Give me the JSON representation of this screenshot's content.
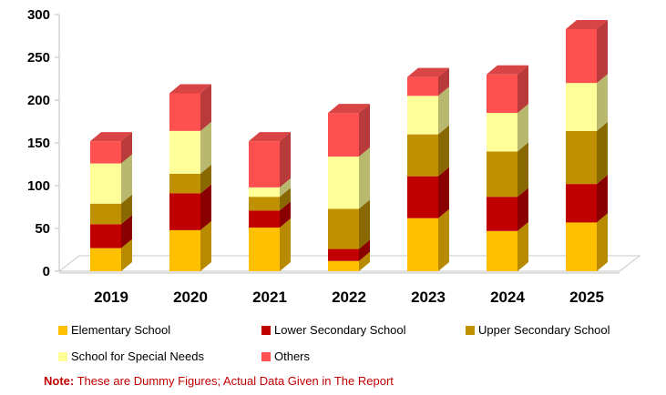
{
  "chart_data": {
    "type": "bar",
    "stacked": true,
    "categories": [
      "2019",
      "2020",
      "2021",
      "2022",
      "2023",
      "2024",
      "2025"
    ],
    "series": [
      {
        "name": "Elementary School",
        "color": "#FFC000",
        "values": [
          27,
          48,
          51,
          12,
          62,
          47,
          57
        ]
      },
      {
        "name": "Lower Secondary School",
        "color": "#C00000",
        "values": [
          28,
          43,
          20,
          14,
          49,
          40,
          45
        ]
      },
      {
        "name": "Upper Secondary School",
        "color": "#BF9000",
        "values": [
          24,
          23,
          16,
          47,
          49,
          53,
          62
        ]
      },
      {
        "name": "School for Special Needs",
        "color": "#FFFF99",
        "values": [
          47,
          50,
          11,
          61,
          45,
          45,
          56
        ]
      },
      {
        "name": "Others",
        "color": "#FF5050",
        "values": [
          26,
          44,
          54,
          51,
          22,
          45,
          63
        ]
      }
    ],
    "ylim": [
      0,
      300
    ],
    "yticks": [
      0,
      50,
      100,
      150,
      200,
      250,
      300
    ],
    "grid": false,
    "legend_position": "bottom"
  },
  "note": {
    "label": "Note:",
    "text": " These are Dummy Figures; Actual Data Given in The Report"
  }
}
